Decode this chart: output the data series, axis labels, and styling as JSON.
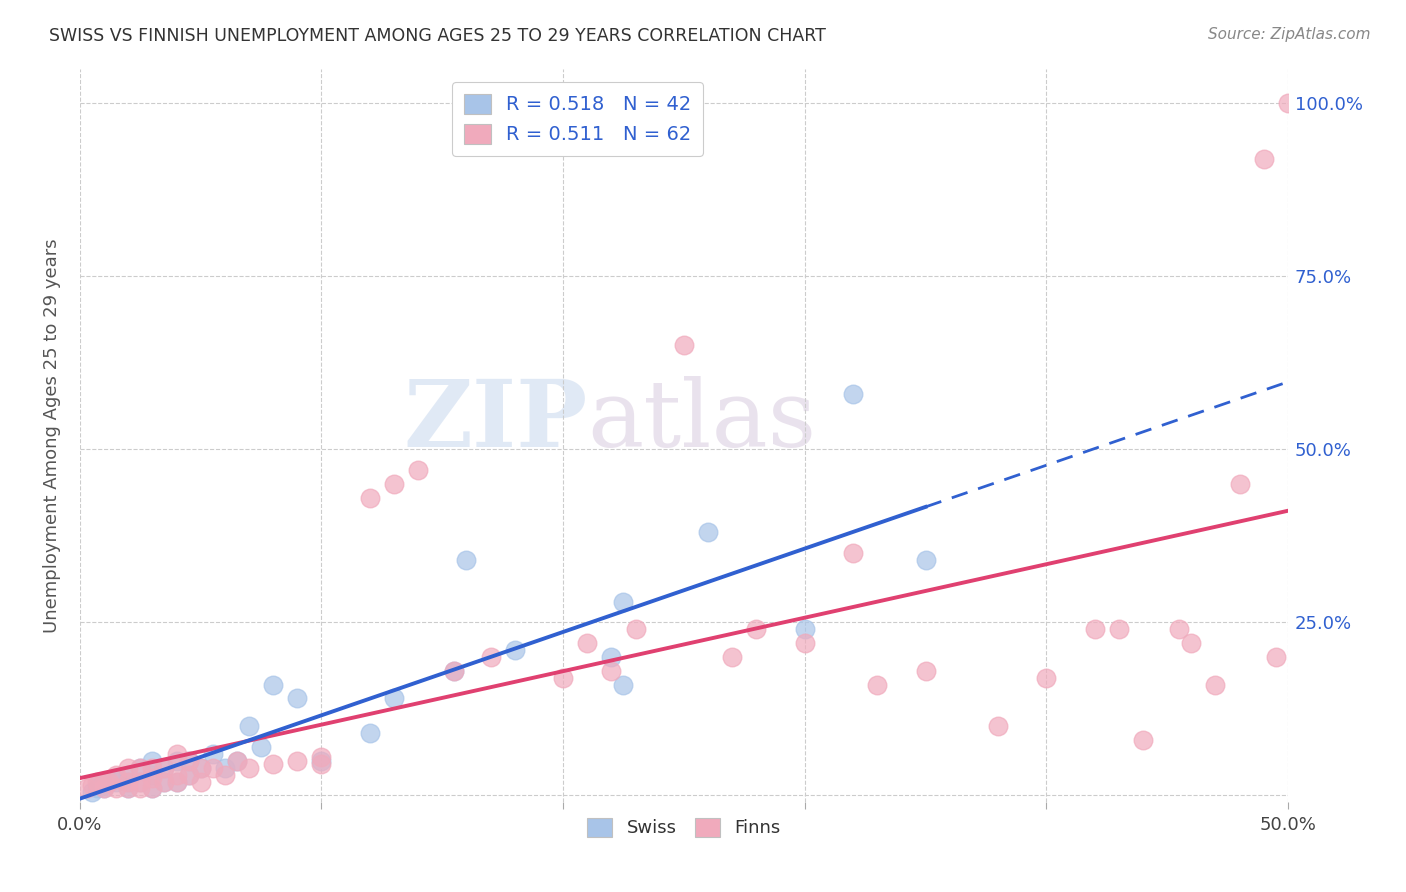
{
  "title": "SWISS VS FINNISH UNEMPLOYMENT AMONG AGES 25 TO 29 YEARS CORRELATION CHART",
  "source": "Source: ZipAtlas.com",
  "ylabel": "Unemployment Among Ages 25 to 29 years",
  "xlim": [
    0,
    0.5
  ],
  "ylim": [
    -0.01,
    1.05
  ],
  "legend_r_swiss": "0.518",
  "legend_n_swiss": "42",
  "legend_r_finns": "0.511",
  "legend_n_finns": "62",
  "swiss_color": "#a8c4e8",
  "finns_color": "#f0aabc",
  "line_swiss_color": "#3060d0",
  "line_finns_color": "#e04070",
  "background_color": "#ffffff",
  "watermark_zip": "ZIP",
  "watermark_atlas": "atlas",
  "swiss_x": [
    0.005,
    0.007,
    0.008,
    0.01,
    0.01,
    0.015,
    0.015,
    0.02,
    0.02,
    0.02,
    0.025,
    0.025,
    0.03,
    0.03,
    0.03,
    0.035,
    0.035,
    0.04,
    0.04,
    0.045,
    0.045,
    0.05,
    0.055,
    0.06,
    0.065,
    0.07,
    0.075,
    0.08,
    0.09,
    0.1,
    0.12,
    0.13,
    0.155,
    0.16,
    0.18,
    0.22,
    0.225,
    0.225,
    0.26,
    0.3,
    0.32,
    0.35
  ],
  "swiss_y": [
    0.005,
    0.01,
    0.02,
    0.01,
    0.015,
    0.02,
    0.025,
    0.01,
    0.02,
    0.03,
    0.02,
    0.04,
    0.01,
    0.03,
    0.05,
    0.02,
    0.04,
    0.02,
    0.05,
    0.03,
    0.05,
    0.04,
    0.06,
    0.04,
    0.05,
    0.1,
    0.07,
    0.16,
    0.14,
    0.05,
    0.09,
    0.14,
    0.18,
    0.34,
    0.21,
    0.2,
    0.28,
    0.16,
    0.38,
    0.24,
    0.58,
    0.34
  ],
  "finns_x": [
    0.003,
    0.005,
    0.007,
    0.01,
    0.01,
    0.012,
    0.015,
    0.015,
    0.02,
    0.02,
    0.02,
    0.025,
    0.025,
    0.025,
    0.03,
    0.03,
    0.03,
    0.035,
    0.035,
    0.04,
    0.04,
    0.04,
    0.045,
    0.045,
    0.05,
    0.05,
    0.055,
    0.06,
    0.065,
    0.07,
    0.08,
    0.09,
    0.1,
    0.1,
    0.12,
    0.13,
    0.14,
    0.155,
    0.17,
    0.2,
    0.21,
    0.22,
    0.23,
    0.25,
    0.27,
    0.28,
    0.3,
    0.32,
    0.33,
    0.35,
    0.38,
    0.4,
    0.42,
    0.43,
    0.44,
    0.455,
    0.46,
    0.47,
    0.48,
    0.49,
    0.495,
    0.5
  ],
  "finns_y": [
    0.01,
    0.015,
    0.02,
    0.01,
    0.02,
    0.02,
    0.01,
    0.03,
    0.01,
    0.02,
    0.04,
    0.01,
    0.02,
    0.04,
    0.01,
    0.025,
    0.04,
    0.02,
    0.04,
    0.02,
    0.03,
    0.06,
    0.03,
    0.05,
    0.02,
    0.04,
    0.04,
    0.03,
    0.05,
    0.04,
    0.045,
    0.05,
    0.055,
    0.045,
    0.43,
    0.45,
    0.47,
    0.18,
    0.2,
    0.17,
    0.22,
    0.18,
    0.24,
    0.65,
    0.2,
    0.24,
    0.22,
    0.35,
    0.16,
    0.18,
    0.1,
    0.17,
    0.24,
    0.24,
    0.08,
    0.24,
    0.22,
    0.16,
    0.45,
    0.92,
    0.2,
    1.0
  ]
}
